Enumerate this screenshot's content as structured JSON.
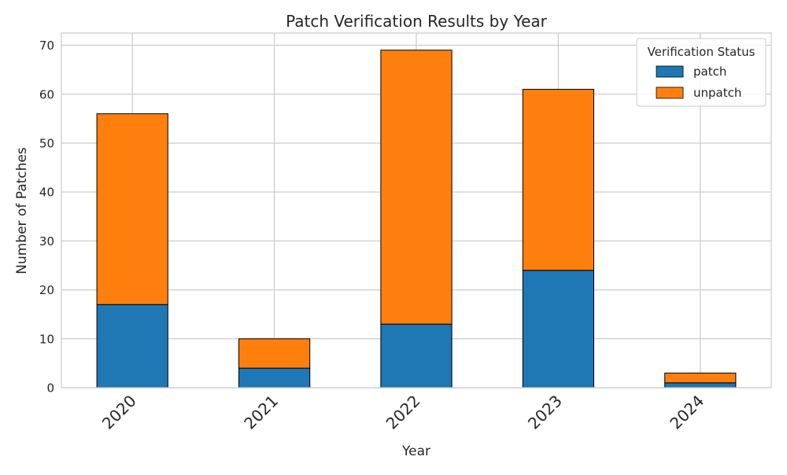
{
  "chart_data": {
    "type": "bar",
    "stacked": true,
    "title": "Patch Verification Results by Year",
    "xlabel": "Year",
    "ylabel": "Number of Patches",
    "categories": [
      "2020",
      "2021",
      "2022",
      "2023",
      "2024"
    ],
    "series": [
      {
        "name": "patch",
        "values": [
          17,
          4,
          13,
          24,
          1
        ],
        "color": "#1f77b4"
      },
      {
        "name": "unpatch",
        "values": [
          39,
          6,
          56,
          37,
          2
        ],
        "color": "#ff7f0e"
      }
    ],
    "ylim": [
      0,
      72.5
    ],
    "yticks": [
      0,
      10,
      20,
      30,
      40,
      50,
      60,
      70
    ],
    "grid": true,
    "legend": {
      "title": "Verification Status",
      "position": "top-right"
    }
  }
}
